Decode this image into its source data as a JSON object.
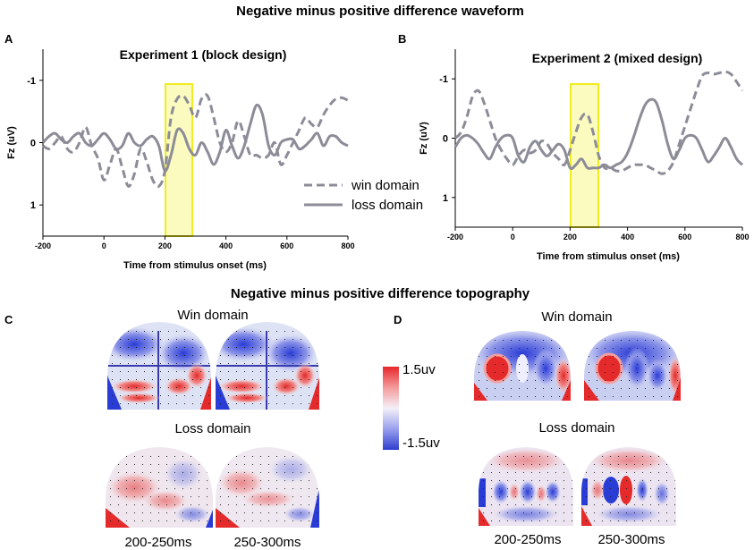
{
  "figure": {
    "top_title": "Negative minus positive difference waveform",
    "bottom_title": "Negative minus positive difference topography"
  },
  "chart_data": [
    {
      "type": "line",
      "panel_label": "A",
      "title": "Experiment 1 (block design)",
      "xlabel": "Time from stimulus onset (ms)",
      "ylabel": "Fz (uV)",
      "xlim": [
        -200,
        800
      ],
      "ylim": [
        1.5,
        -1.5
      ],
      "y_inverted": true,
      "xticks": [
        "-200",
        "0",
        "200",
        "400",
        "600",
        "800"
      ],
      "yticks": [
        "-1",
        "0",
        "1"
      ],
      "highlight_window": [
        200,
        300
      ],
      "legend": [
        "win domain",
        "loss domain"
      ],
      "series": [
        {
          "name": "win domain",
          "style": "dashed",
          "x": [
            -200,
            -180,
            -160,
            -140,
            -120,
            -100,
            -80,
            -60,
            -40,
            -20,
            0,
            20,
            40,
            60,
            80,
            100,
            120,
            140,
            160,
            180,
            200,
            220,
            240,
            260,
            280,
            300,
            320,
            340,
            360,
            380,
            400,
            420,
            440,
            460,
            480,
            500,
            520,
            540,
            560,
            580,
            600,
            620,
            640,
            660,
            680,
            700,
            720,
            740,
            760,
            780,
            800
          ],
          "y": [
            0.05,
            0.1,
            0.0,
            -0.1,
            0.1,
            0.15,
            0.0,
            -0.25,
            0.05,
            0.25,
            0.6,
            0.35,
            0.1,
            0.4,
            0.7,
            0.5,
            0.1,
            0.3,
            0.6,
            0.7,
            0.45,
            -0.4,
            -0.7,
            -0.75,
            -0.6,
            -0.4,
            -0.7,
            -0.75,
            -0.4,
            0.0,
            0.15,
            0.0,
            -0.35,
            -0.1,
            0.2,
            0.2,
            0.25,
            0.2,
            0.0,
            0.35,
            0.2,
            0.0,
            -0.2,
            -0.4,
            -0.3,
            -0.25,
            -0.45,
            -0.6,
            -0.7,
            -0.72,
            -0.68
          ]
        },
        {
          "name": "loss domain",
          "style": "solid",
          "x": [
            -200,
            -180,
            -160,
            -140,
            -120,
            -100,
            -80,
            -60,
            -40,
            -20,
            0,
            20,
            40,
            60,
            80,
            100,
            120,
            140,
            160,
            180,
            200,
            220,
            240,
            260,
            280,
            300,
            320,
            340,
            360,
            380,
            400,
            420,
            440,
            460,
            480,
            500,
            520,
            540,
            560,
            580,
            600,
            620,
            640,
            660,
            680,
            700,
            720,
            740,
            760,
            780,
            800
          ],
          "y": [
            0.0,
            -0.1,
            -0.15,
            -0.05,
            0.0,
            -0.1,
            -0.15,
            0.0,
            0.05,
            -0.05,
            -0.15,
            -0.05,
            0.1,
            0.05,
            -0.15,
            0.0,
            0.05,
            -0.05,
            -0.1,
            0.05,
            0.45,
            0.2,
            -0.2,
            -0.15,
            0.1,
            0.2,
            0.0,
            0.15,
            0.35,
            0.15,
            -0.2,
            0.05,
            0.25,
            0.05,
            -0.3,
            -0.6,
            -0.45,
            0.05,
            0.2,
            0.0,
            -0.05,
            -0.05,
            0.1,
            0.05,
            -0.05,
            -0.15,
            0.05,
            -0.1,
            -0.1,
            0.0,
            0.05
          ]
        }
      ]
    },
    {
      "type": "line",
      "panel_label": "B",
      "title": "Experiment 2 (mixed design)",
      "xlabel": "Time from stimulus onset (ms)",
      "ylabel": "Fz (uV)",
      "xlim": [
        -200,
        800
      ],
      "ylim": [
        1.5,
        -1.5
      ],
      "y_inverted": true,
      "xticks": [
        "-200",
        "0",
        "200",
        "400",
        "600",
        "800"
      ],
      "yticks": [
        "-1",
        "0",
        "1"
      ],
      "highlight_window": [
        200,
        300
      ],
      "series": [
        {
          "name": "win domain",
          "style": "dashed",
          "x": [
            -200,
            -180,
            -160,
            -140,
            -120,
            -100,
            -80,
            -60,
            -40,
            -20,
            0,
            20,
            40,
            60,
            80,
            100,
            120,
            140,
            160,
            180,
            200,
            220,
            240,
            260,
            280,
            300,
            320,
            340,
            360,
            380,
            400,
            420,
            440,
            460,
            480,
            500,
            520,
            540,
            560,
            580,
            600,
            620,
            640,
            660,
            680,
            700,
            720,
            740,
            760,
            780,
            800
          ],
          "y": [
            0.0,
            -0.1,
            -0.35,
            -0.7,
            -0.8,
            -0.6,
            -0.3,
            0.0,
            0.2,
            0.35,
            0.45,
            0.3,
            0.2,
            0.25,
            0.2,
            0.05,
            0.1,
            0.25,
            0.35,
            0.45,
            0.2,
            -0.1,
            -0.35,
            -0.4,
            -0.1,
            0.3,
            0.5,
            0.5,
            0.55,
            0.55,
            0.5,
            0.45,
            0.45,
            0.45,
            0.5,
            0.55,
            0.6,
            0.55,
            0.4,
            0.1,
            -0.2,
            -0.5,
            -0.8,
            -1.05,
            -1.1,
            -1.08,
            -1.1,
            -1.12,
            -1.08,
            -0.95,
            -0.8
          ]
        },
        {
          "name": "loss domain",
          "style": "solid",
          "x": [
            -200,
            -180,
            -160,
            -140,
            -120,
            -100,
            -80,
            -60,
            -40,
            -20,
            0,
            20,
            40,
            60,
            80,
            100,
            120,
            140,
            160,
            180,
            200,
            220,
            240,
            260,
            280,
            300,
            320,
            340,
            360,
            380,
            400,
            420,
            440,
            460,
            480,
            500,
            520,
            540,
            560,
            580,
            600,
            620,
            640,
            660,
            680,
            700,
            720,
            740,
            760,
            780,
            800
          ],
          "y": [
            0.15,
            0.0,
            -0.05,
            0.0,
            0.1,
            0.25,
            0.35,
            0.15,
            0.0,
            -0.05,
            0.0,
            0.3,
            0.4,
            0.15,
            0.05,
            0.2,
            0.3,
            0.2,
            0.1,
            0.2,
            0.5,
            0.45,
            0.35,
            0.5,
            0.5,
            0.5,
            0.45,
            0.5,
            0.45,
            0.4,
            0.25,
            0.0,
            -0.3,
            -0.55,
            -0.65,
            -0.6,
            -0.3,
            0.1,
            0.35,
            0.2,
            0.0,
            -0.05,
            0.0,
            0.2,
            0.4,
            0.3,
            0.15,
            0.0,
            0.15,
            0.35,
            0.45
          ]
        }
      ]
    }
  ],
  "topography": {
    "panels": [
      {
        "label": "C",
        "win_title": "Win domain",
        "loss_title": "Loss domain"
      },
      {
        "label": "D",
        "win_title": "Win domain",
        "loss_title": "Loss domain"
      }
    ],
    "time_windows": [
      "200-250ms",
      "250-300ms"
    ],
    "colorbar": {
      "max_label": "1.5uv",
      "min_label": "-1.5uv",
      "max_color": "#e8262b",
      "min_color": "#2f3ed0"
    }
  },
  "colors": {
    "line": "#8c8c98",
    "highlight_fill": "#fbfbc0",
    "highlight_stroke": "#f0ec20"
  }
}
